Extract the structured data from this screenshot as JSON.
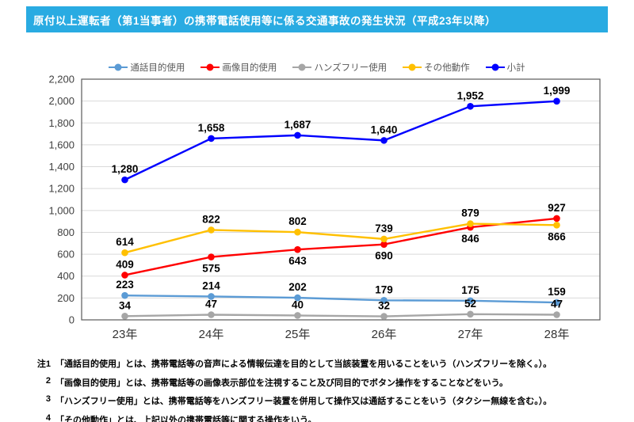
{
  "header": {
    "title": "原付以上運転者（第1当事者）の携帯電話使用等に係る交通事故の発生状況（平成23年以降）",
    "background_color": "#29ABE2",
    "text_color": "#FFFFFF"
  },
  "chart_data": {
    "type": "line",
    "title": "",
    "xlabel": "",
    "ylabel": "",
    "categories": [
      "23年",
      "24年",
      "25年",
      "26年",
      "27年",
      "28年"
    ],
    "series": [
      {
        "name": "通話目的使用",
        "color": "#5B9BD5",
        "values": [
          223,
          214,
          202,
          179,
          175,
          159
        ],
        "label_side": [
          "above",
          "above",
          "above",
          "above",
          "above",
          "above"
        ]
      },
      {
        "name": "画像目的使用",
        "color": "#FF0000",
        "values": [
          409,
          575,
          643,
          690,
          846,
          927
        ],
        "label_side": [
          "above",
          "below",
          "below",
          "below",
          "below",
          "above"
        ]
      },
      {
        "name": "ハンズフリー使用",
        "color": "#A6A6A6",
        "values": [
          34,
          47,
          40,
          32,
          52,
          47
        ],
        "label_side": [
          "above",
          "above",
          "above",
          "above",
          "above",
          "above"
        ]
      },
      {
        "name": "その他動作",
        "color": "#FFC000",
        "values": [
          614,
          822,
          802,
          739,
          879,
          866
        ],
        "label_side": [
          "above",
          "above",
          "above",
          "above",
          "above",
          "below"
        ]
      },
      {
        "name": "小計",
        "color": "#0000FF",
        "values": [
          1280,
          1658,
          1687,
          1640,
          1952,
          1999
        ],
        "label_side": [
          "above",
          "above",
          "above",
          "above",
          "above",
          "above"
        ]
      }
    ],
    "ylim": [
      0,
      2200
    ],
    "ytick_step": 200,
    "grid": true,
    "legend_position": "top",
    "grid_color": "#D9D9D9",
    "border_color": "#595959",
    "tick_color": "#404040"
  },
  "notes": [
    {
      "num": "注1",
      "text": "「通話目的使用」とは、携帯電話等の音声による情報伝達を目的として当該装置を用いることをいう（ハンズフリーを除く。）。"
    },
    {
      "num": "2",
      "text": "「画像目的使用」とは、携帯電話等の画像表示部位を注視すること及び同目的でボタン操作をすることなどをいう。"
    },
    {
      "num": "3",
      "text": "「ハンズフリー使用」とは、携帯電話等をハンズフリー装置を併用して操作又は通話することをいう（タクシー無線を含む。）。"
    },
    {
      "num": "4",
      "text": "「その他動作」とは、上記以外の携帯電話等に関する操作をいう。"
    }
  ]
}
